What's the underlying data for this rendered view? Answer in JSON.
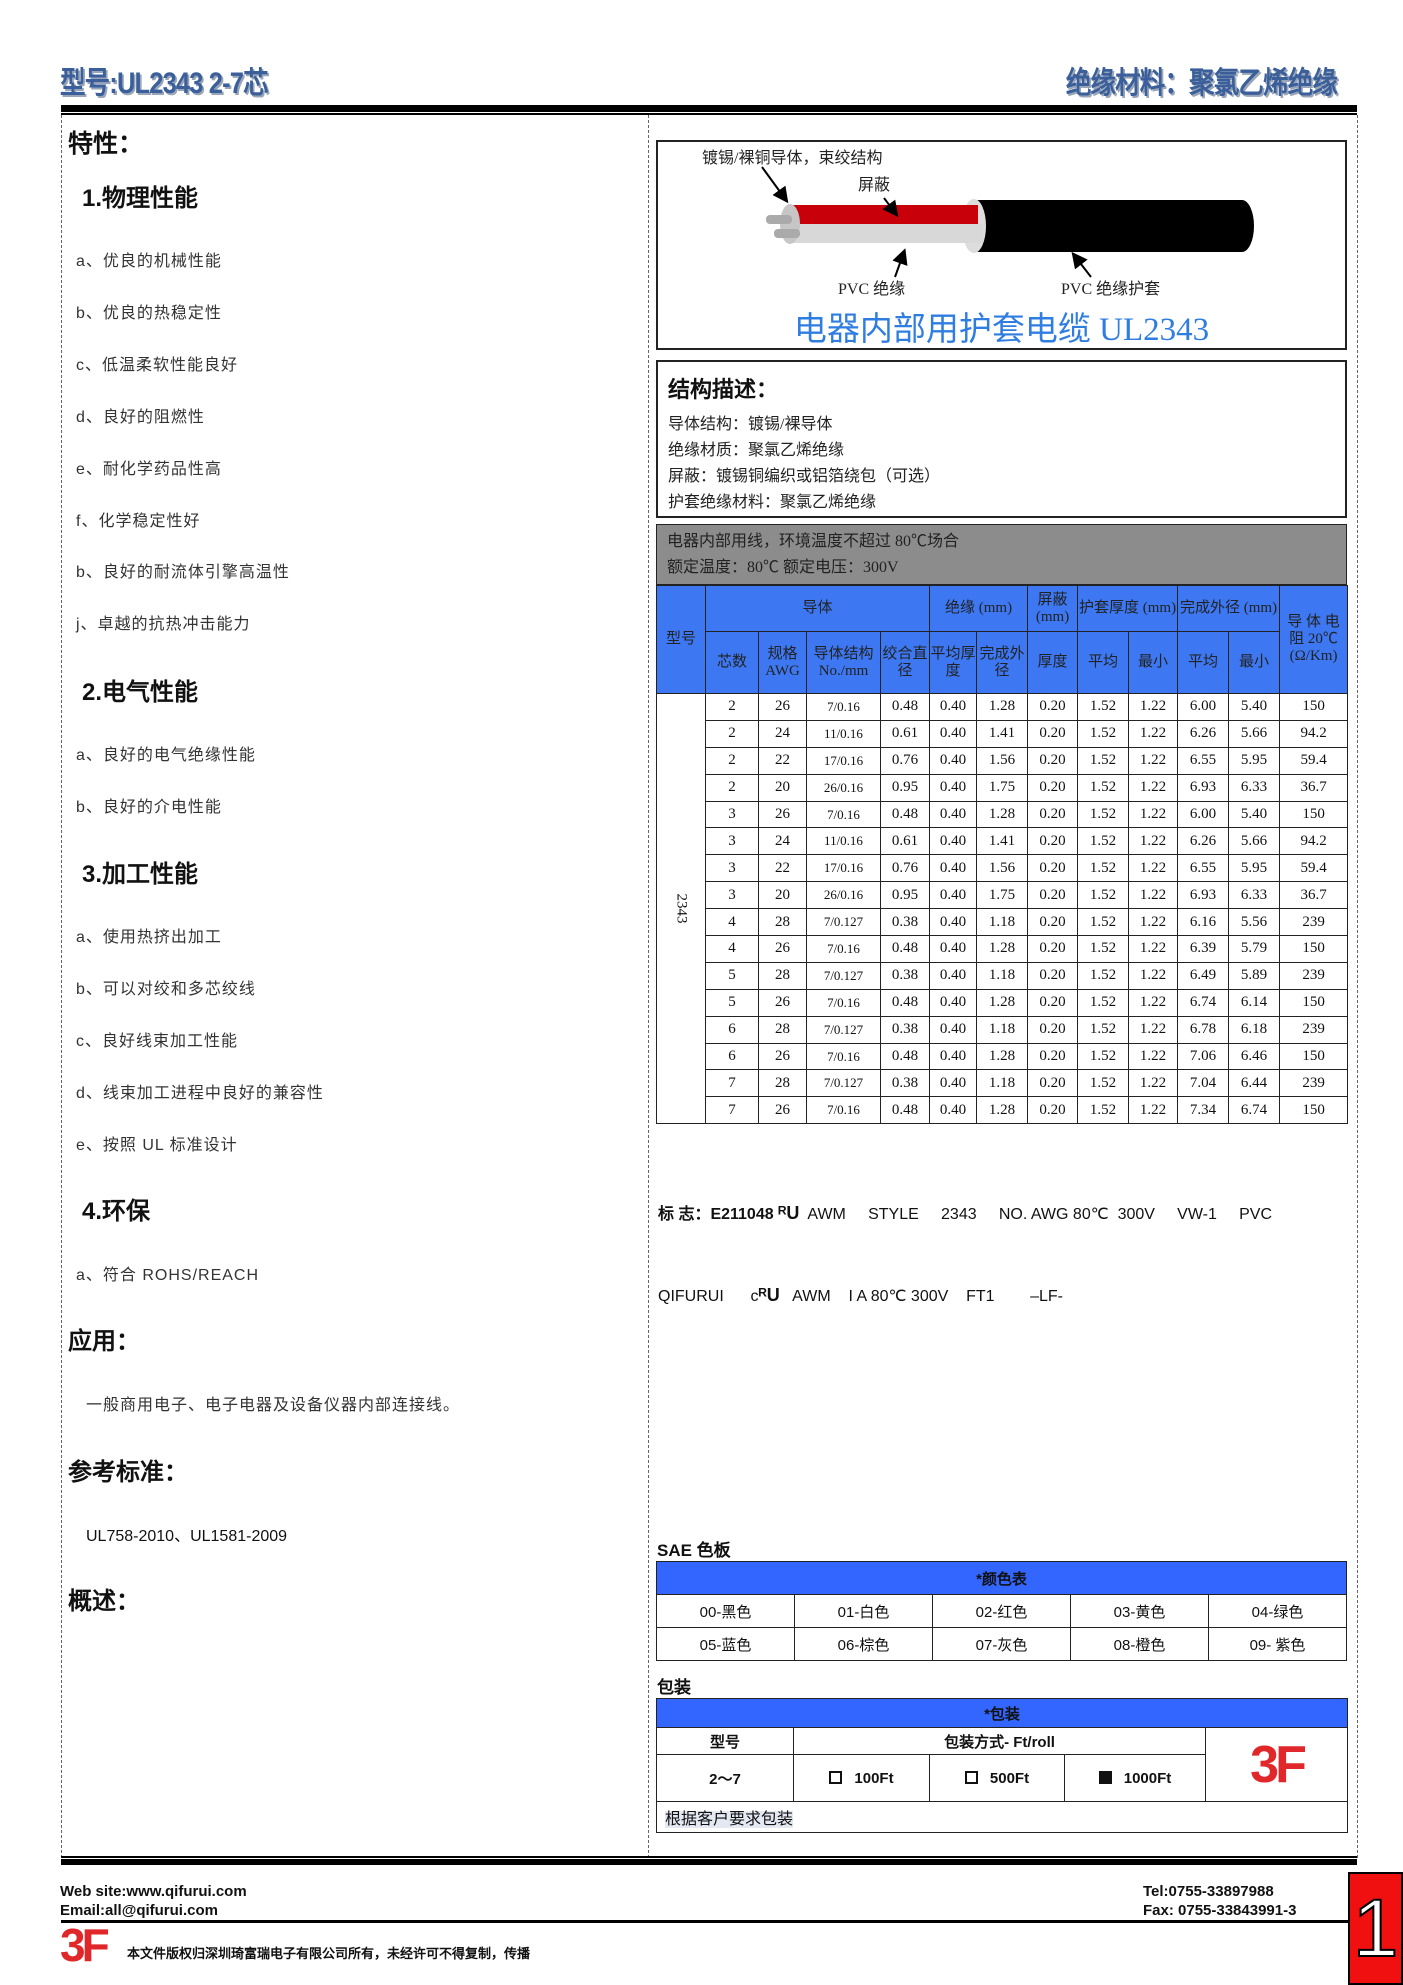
{
  "header": {
    "model": "型号:UL2343 2-7芯",
    "material": "绝缘材料：聚氯乙烯绝缘"
  },
  "left": {
    "features_title": "特性：",
    "sections": [
      {
        "title": "1.物理性能",
        "items": [
          "a、优良的机械性能",
          "b、优良的热稳定性",
          "c、低温柔软性能良好",
          "d、良好的阻燃性",
          "e、耐化学药品性高",
          "f、化学稳定性好",
          "b、良好的耐流体引擎高温性",
          "j、卓越的抗热冲击能力"
        ]
      },
      {
        "title": "2.电气性能",
        "items": [
          "a、良好的电气绝缘性能",
          "b、良好的介电性能"
        ]
      },
      {
        "title": "3.加工性能",
        "items": [
          "a、使用热挤出加工",
          "b、可以对绞和多芯绞线",
          "c、良好线束加工性能",
          "d、线束加工进程中良好的兼容性",
          "e、按照 UL 标准设计"
        ]
      },
      {
        "title": "4.环保",
        "items": [
          "a、符合 ROHS/REACH"
        ]
      }
    ],
    "application_title": "应用：",
    "application_text": "一般商用电子、电子电器及设备仪器内部连接线。",
    "standard_title": "参考标准：",
    "standard_text": "UL758-2010、UL1581-2009",
    "overview_title": "概述："
  },
  "diagram": {
    "label_conductor": "镀锡/裸铜导体，束绞结构",
    "label_shield": "屏蔽",
    "label_insulation": "PVC 绝缘",
    "label_jacket": "PVC  绝缘护套",
    "title": "电器内部用护套电缆 UL2343",
    "title_color": "#2f7de1"
  },
  "structure": {
    "title": "结构描述：",
    "lines": [
      "导体结构：镀锡/裸导体",
      "绝缘材质：聚氯乙烯绝缘",
      "屏蔽：镀锡铜编织或铝箔绕包（可选）",
      "护套绝缘材料：聚氯乙烯绝缘"
    ]
  },
  "rating": {
    "line1": "电器内部用线，环境温度不超过 80℃场合",
    "line2": "额定温度：80℃  额定电压：300V"
  },
  "spec_table": {
    "h_model": "型号",
    "h_conductor": "导体",
    "h_insulation": "绝缘 (mm)",
    "h_shield": "屏蔽 (mm)",
    "h_jacket": "护套厚度 (mm)",
    "h_od": "完成外径 (mm)",
    "h_resistance": "导 体 电 阻 20℃ (Ω/Km)",
    "h_cores": "芯数",
    "h_awg": "规格 AWG",
    "h_strand": "导体结构 No./mm",
    "h_dia": "绞合直径",
    "h_ins_avg": "平均厚度",
    "h_ins_od": "完成外径",
    "h_shield_t": "厚度",
    "h_j_avg": "平均",
    "h_j_min": "最小",
    "h_od_avg": "平均",
    "h_od_min": "最小",
    "model_value": "2343",
    "rows": [
      [
        "2",
        "26",
        "7/0.16",
        "0.48",
        "0.40",
        "1.28",
        "0.20",
        "1.52",
        "1.22",
        "6.00",
        "5.40",
        "150"
      ],
      [
        "2",
        "24",
        "11/0.16",
        "0.61",
        "0.40",
        "1.41",
        "0.20",
        "1.52",
        "1.22",
        "6.26",
        "5.66",
        "94.2"
      ],
      [
        "2",
        "22",
        "17/0.16",
        "0.76",
        "0.40",
        "1.56",
        "0.20",
        "1.52",
        "1.22",
        "6.55",
        "5.95",
        "59.4"
      ],
      [
        "2",
        "20",
        "26/0.16",
        "0.95",
        "0.40",
        "1.75",
        "0.20",
        "1.52",
        "1.22",
        "6.93",
        "6.33",
        "36.7"
      ],
      [
        "3",
        "26",
        "7/0.16",
        "0.48",
        "0.40",
        "1.28",
        "0.20",
        "1.52",
        "1.22",
        "6.00",
        "5.40",
        "150"
      ],
      [
        "3",
        "24",
        "11/0.16",
        "0.61",
        "0.40",
        "1.41",
        "0.20",
        "1.52",
        "1.22",
        "6.26",
        "5.66",
        "94.2"
      ],
      [
        "3",
        "22",
        "17/0.16",
        "0.76",
        "0.40",
        "1.56",
        "0.20",
        "1.52",
        "1.22",
        "6.55",
        "5.95",
        "59.4"
      ],
      [
        "3",
        "20",
        "26/0.16",
        "0.95",
        "0.40",
        "1.75",
        "0.20",
        "1.52",
        "1.22",
        "6.93",
        "6.33",
        "36.7"
      ],
      [
        "4",
        "28",
        "7/0.127",
        "0.38",
        "0.40",
        "1.18",
        "0.20",
        "1.52",
        "1.22",
        "6.16",
        "5.56",
        "239"
      ],
      [
        "4",
        "26",
        "7/0.16",
        "0.48",
        "0.40",
        "1.28",
        "0.20",
        "1.52",
        "1.22",
        "6.39",
        "5.79",
        "150"
      ],
      [
        "5",
        "28",
        "7/0.127",
        "0.38",
        "0.40",
        "1.18",
        "0.20",
        "1.52",
        "1.22",
        "6.49",
        "5.89",
        "239"
      ],
      [
        "5",
        "26",
        "7/0.16",
        "0.48",
        "0.40",
        "1.28",
        "0.20",
        "1.52",
        "1.22",
        "6.74",
        "6.14",
        "150"
      ],
      [
        "6",
        "28",
        "7/0.127",
        "0.38",
        "0.40",
        "1.18",
        "0.20",
        "1.52",
        "1.22",
        "6.78",
        "6.18",
        "239"
      ],
      [
        "6",
        "26",
        "7/0.16",
        "0.48",
        "0.40",
        "1.28",
        "0.20",
        "1.52",
        "1.22",
        "7.06",
        "6.46",
        "150"
      ],
      [
        "7",
        "28",
        "7/0.127",
        "0.38",
        "0.40",
        "1.18",
        "0.20",
        "1.52",
        "1.22",
        "7.04",
        "6.44",
        "239"
      ],
      [
        "7",
        "26",
        "7/0.16",
        "0.48",
        "0.40",
        "1.28",
        "0.20",
        "1.52",
        "1.22",
        "7.34",
        "6.74",
        "150"
      ]
    ]
  },
  "marking": {
    "line1_a": "标 志：E211048",
    "line1_b": "AWM     STYLE     2343     NO. AWG 80℃  300V     VW-1     PVC",
    "line2_a": "QIFURUI",
    "line2_c": "c",
    "line2_b": "AWM    I A 80℃ 300V    FT1        –LF-"
  },
  "color_chart": {
    "title": "SAE 色板",
    "header": "*颜色表",
    "rows": [
      [
        "00-黑色",
        "01-白色",
        "02-红色",
        "03-黄色",
        "04-绿色"
      ],
      [
        "05-蓝色",
        "06-棕色",
        "07-灰色",
        "08-橙色",
        "09-  紫色"
      ]
    ]
  },
  "packaging": {
    "title": "包装",
    "header": "*包装",
    "h_model": "型号",
    "h_method": "包装方式- Ft/roll",
    "model": "2～7",
    "options": [
      {
        "label": "100Ft",
        "checked": false
      },
      {
        "label": "500Ft",
        "checked": false
      },
      {
        "label": "1000Ft",
        "checked": true
      }
    ],
    "note": "根据客户要求包装",
    "logo": "3F"
  },
  "footer": {
    "website": "Web site:www.qifurui.com",
    "email": "Email:all@qifurui.com",
    "tel": "Tel:0755-33897988",
    "fax": "Fax: 0755-33843991-3",
    "copyright": "本文件版权归深圳琦富瑞电子有限公司所有，未经许可不得复制，传播",
    "logo": "3F",
    "page": "1"
  },
  "colors": {
    "header_blue": "#3a5f9a",
    "table_blue": "#3d78f2",
    "rating_gray": "#8c8c8c",
    "logo_red": "#e0282a"
  }
}
